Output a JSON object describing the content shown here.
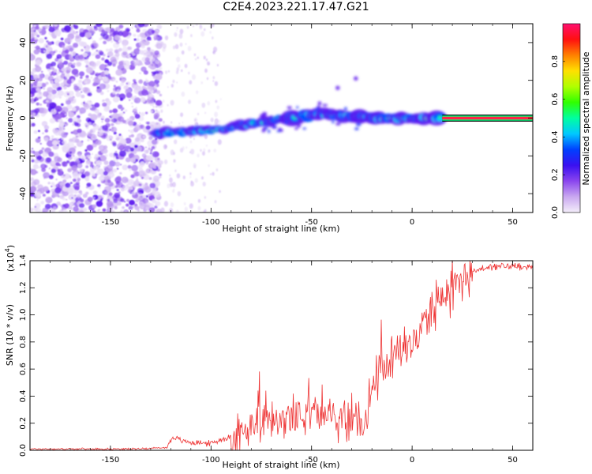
{
  "title": "C2E4.2023.221.17.47.G21",
  "chart_data": [
    {
      "type": "heatmap",
      "xlabel": "Height of straight line (km)",
      "ylabel": "Frequency (Hz)",
      "xlim": [
        -190,
        60
      ],
      "ylim": [
        -50,
        50
      ],
      "xticks": [
        -150,
        -100,
        -50,
        0,
        50
      ],
      "yticks": [
        -40,
        -20,
        0,
        20,
        40
      ],
      "colorbar": {
        "label": "Normalized spectral amplitude",
        "range": [
          0.0,
          1.0
        ],
        "ticks": [
          0.0,
          0.2,
          0.4,
          0.6,
          0.8
        ],
        "colors": [
          "#f4eefa",
          "#c9a8f0",
          "#8a45ee",
          "#3a10f0",
          "#0040ff",
          "#00c8ff",
          "#00ffa0",
          "#30ff00",
          "#b0ff00",
          "#ffe000",
          "#ff8000",
          "#ff1010",
          "#ff1070"
        ]
      },
      "features": {
        "noise_region_x": [
          -190,
          -125
        ],
        "band_onset_x": -127,
        "band_frequency": [
          [
            -127,
            -8
          ],
          [
            -110,
            -7
          ],
          [
            -95,
            -6
          ],
          [
            -85,
            -4
          ],
          [
            -75,
            -2
          ],
          [
            -65,
            0
          ],
          [
            -55,
            1
          ],
          [
            -45,
            2
          ],
          [
            -35,
            1
          ],
          [
            -25,
            1
          ],
          [
            -15,
            0
          ],
          [
            0,
            0
          ],
          [
            15,
            0
          ],
          [
            60,
            0
          ]
        ],
        "steady_line_start_x": 15
      }
    },
    {
      "type": "line",
      "xlabel": "Height of straight line (km)",
      "ylabel": "SNR (10 * v/v)",
      "y_multiplier": "(x10",
      "y_multiplier_exp": "4",
      "y_multiplier_close": ")",
      "xlim": [
        -190,
        60
      ],
      "ylim": [
        0,
        1.4
      ],
      "xticks": [
        -150,
        -100,
        -50,
        0,
        50
      ],
      "yticks": [
        0.0,
        0.2,
        0.4,
        0.6,
        0.8,
        1.0,
        1.2,
        1.4
      ],
      "line_color": "#ee3333",
      "series": [
        {
          "x": [
            -190,
            -180,
            -170,
            -160,
            -150,
            -140,
            -130,
            -122,
            -119,
            -115,
            -110,
            -100,
            -95,
            -90,
            -85,
            -80,
            -75,
            -70,
            -65,
            -60,
            -55,
            -50,
            -45,
            -40,
            -35,
            -30,
            -25,
            -22,
            -20,
            -15,
            -10,
            -5,
            0,
            5,
            10,
            15,
            20,
            25,
            30,
            35,
            40,
            45,
            50,
            55,
            60
          ],
          "values": [
            0.01,
            0.01,
            0.01,
            0.01,
            0.01,
            0.01,
            0.015,
            0.02,
            0.1,
            0.07,
            0.06,
            0.05,
            0.08,
            0.1,
            0.12,
            0.15,
            0.18,
            0.2,
            0.22,
            0.22,
            0.24,
            0.24,
            0.25,
            0.25,
            0.22,
            0.2,
            0.18,
            0.3,
            0.5,
            0.62,
            0.7,
            0.75,
            0.8,
            0.9,
            1.0,
            1.1,
            1.2,
            1.28,
            1.32,
            1.34,
            1.35,
            1.36,
            1.36,
            1.36,
            1.36
          ]
        }
      ]
    }
  ]
}
